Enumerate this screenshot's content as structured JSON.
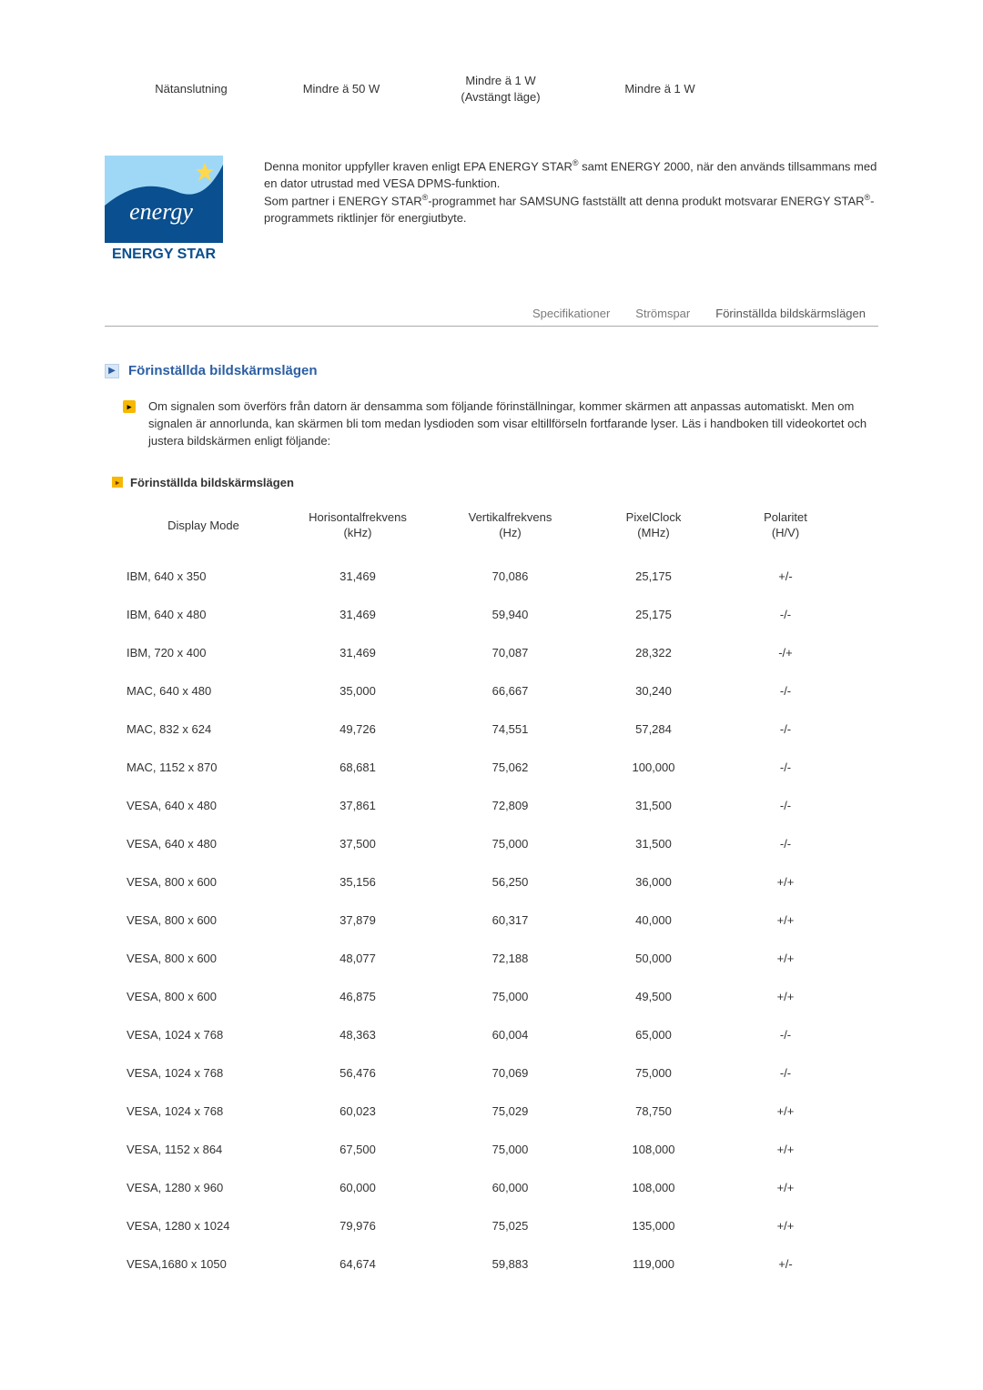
{
  "top_row": {
    "c1": "Nätanslutning",
    "c2": "Mindre ä 50 W",
    "c3a": "Mindre ä 1 W",
    "c3b": "(Avstängt läge)",
    "c4": "Mindre ä 1 W"
  },
  "logo": {
    "wordmark": "energy",
    "bar": "ENERGY STAR",
    "bg": "#0a4f8f",
    "swoosh": "#9fd8f7",
    "accent": "#ffd84d"
  },
  "energy_text": {
    "l1a": "Denna monitor uppfyller kraven enligt EPA ENERGY STAR",
    "l1b": " samt ENERGY 2000, när den används tillsammans med en dator utrustad med VESA DPMS-funktion.",
    "l2a": "Som partner i ENERGY STAR",
    "l2b": "-programmet har SAMSUNG fastställt att denna produkt motsvarar ENERGY STAR",
    "l2c": "-programmets riktlinjer för energiutbyte."
  },
  "tabs": {
    "a": "Specifikationer",
    "b": "Strömspar",
    "c": "Förinställda bildskärmslägen"
  },
  "section_title": "Förinställda bildskärmslägen",
  "intro": "Om signalen som överförs från datorn är densamma som följande förinställningar, kommer skärmen att anpassas automatiskt. Men om signalen är annorlunda, kan skärmen bli tom medan lysdioden som visar eltillförseln fortfarande lyser. Läs i handboken till videokortet och justera bildskärmen enligt följande:",
  "subhead": "Förinställda bildskärmslägen",
  "table": {
    "headers": {
      "mode": "Display Mode",
      "h_a": "Horisontalfrekvens",
      "h_b": "(kHz)",
      "v_a": "Vertikalfrekvens",
      "v_b": "(Hz)",
      "p_a": "PixelClock",
      "p_b": "(MHz)",
      "pol_a": "Polaritet",
      "pol_b": "(H/V)"
    },
    "rows": [
      {
        "mode": "IBM, 640 x 350",
        "h": "31,469",
        "v": "70,086",
        "p": "25,175",
        "pol": "+/-"
      },
      {
        "mode": "IBM, 640 x 480",
        "h": "31,469",
        "v": "59,940",
        "p": "25,175",
        "pol": "-/-"
      },
      {
        "mode": "IBM, 720 x 400",
        "h": "31,469",
        "v": "70,087",
        "p": "28,322",
        "pol": "-/+"
      },
      {
        "mode": "MAC, 640 x 480",
        "h": "35,000",
        "v": "66,667",
        "p": "30,240",
        "pol": "-/-"
      },
      {
        "mode": "MAC, 832 x 624",
        "h": "49,726",
        "v": "74,551",
        "p": "57,284",
        "pol": "-/-"
      },
      {
        "mode": "MAC, 1152 x 870",
        "h": "68,681",
        "v": "75,062",
        "p": "100,000",
        "pol": "-/-"
      },
      {
        "mode": "VESA, 640 x 480",
        "h": "37,861",
        "v": "72,809",
        "p": "31,500",
        "pol": "-/-"
      },
      {
        "mode": "VESA, 640 x 480",
        "h": "37,500",
        "v": "75,000",
        "p": "31,500",
        "pol": "-/-"
      },
      {
        "mode": "VESA, 800 x 600",
        "h": "35,156",
        "v": "56,250",
        "p": "36,000",
        "pol": "+/+"
      },
      {
        "mode": "VESA, 800 x 600",
        "h": "37,879",
        "v": "60,317",
        "p": "40,000",
        "pol": "+/+"
      },
      {
        "mode": "VESA, 800 x 600",
        "h": "48,077",
        "v": "72,188",
        "p": "50,000",
        "pol": "+/+"
      },
      {
        "mode": "VESA, 800 x 600",
        "h": "46,875",
        "v": "75,000",
        "p": "49,500",
        "pol": "+/+"
      },
      {
        "mode": "VESA, 1024 x 768",
        "h": "48,363",
        "v": "60,004",
        "p": "65,000",
        "pol": "-/-"
      },
      {
        "mode": "VESA, 1024 x 768",
        "h": "56,476",
        "v": "70,069",
        "p": "75,000",
        "pol": "-/-"
      },
      {
        "mode": "VESA, 1024 x 768",
        "h": "60,023",
        "v": "75,029",
        "p": "78,750",
        "pol": "+/+"
      },
      {
        "mode": "VESA, 1152 x 864",
        "h": "67,500",
        "v": "75,000",
        "p": "108,000",
        "pol": "+/+"
      },
      {
        "mode": "VESA, 1280 x 960",
        "h": "60,000",
        "v": "60,000",
        "p": "108,000",
        "pol": "+/+"
      },
      {
        "mode": "VESA, 1280 x 1024",
        "h": "79,976",
        "v": "75,025",
        "p": "135,000",
        "pol": "+/+"
      },
      {
        "mode": "VESA,1680 x 1050",
        "h": "64,674",
        "v": "59,883",
        "p": "119,000",
        "pol": "+/-"
      }
    ]
  }
}
